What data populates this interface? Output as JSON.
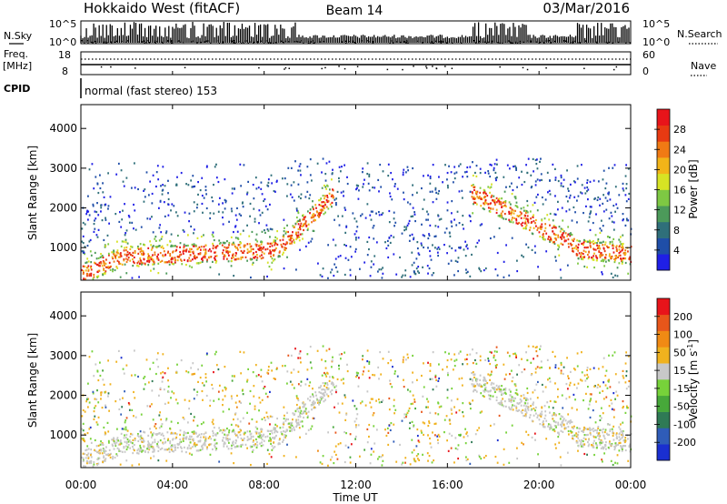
{
  "header": {
    "station": "Hokkaido West (fitACF)",
    "beam": "Beam 14",
    "date": "03/Mar/2016"
  },
  "noise_panel": {
    "left_label": "N.Sky",
    "right_label": "N.Search",
    "tick_top": "10^5",
    "tick_bottom": "10^0"
  },
  "freq_panel": {
    "left_label": "Freq.",
    "left_unit": "[MHz]",
    "left_ticks": [
      "18",
      "8"
    ],
    "right_label": "Nave",
    "right_ticks": [
      "60",
      "0"
    ]
  },
  "cpid_panel": {
    "label": "CPID",
    "mode": "normal (fast stereo) 153"
  },
  "chart_data": [
    {
      "type": "heatmap",
      "title": "Power",
      "xlabel": "Time UT",
      "ylabel": "Slant Range [km]",
      "x_ticks": [
        "00:00",
        "04:00",
        "08:00",
        "12:00",
        "16:00",
        "20:00",
        "00:00"
      ],
      "xlim_hours": [
        0,
        24
      ],
      "y_ticks": [
        1000,
        2000,
        3000,
        4000
      ],
      "ylim": [
        180,
        4600
      ],
      "colorbar": {
        "label": "Power [dB]",
        "ticks": [
          "28",
          "24",
          "20",
          "16",
          "12",
          "8",
          "4"
        ],
        "colors": [
          "#1f1fe6",
          "#1f4ea8",
          "#2f6f7a",
          "#4c9a5a",
          "#7ec843",
          "#d7e324",
          "#f2b418",
          "#f07a14",
          "#e83a12",
          "#e8141a"
        ]
      },
      "scatter_bands": [
        {
          "t_start": 0.0,
          "t_end": 2.0,
          "range_low": 300,
          "range_high": 1300
        },
        {
          "t_start": 2.0,
          "t_end": 8.5,
          "range_low": 700,
          "range_high": 1100
        },
        {
          "t_start": 8.5,
          "t_end": 11.0,
          "range_low": 1000,
          "range_high": 2600
        },
        {
          "t_start": 17.0,
          "t_end": 21.5,
          "range_low": 1200,
          "range_high": 2600
        },
        {
          "t_start": 21.5,
          "t_end": 24.0,
          "range_low": 700,
          "range_high": 1200
        }
      ]
    },
    {
      "type": "heatmap",
      "title": "Velocity",
      "xlabel": "Time UT",
      "ylabel": "Slant Range [km]",
      "x_ticks": [
        "00:00",
        "04:00",
        "08:00",
        "12:00",
        "16:00",
        "20:00",
        "00:00"
      ],
      "xlim_hours": [
        0,
        24
      ],
      "y_ticks": [
        1000,
        2000,
        3000,
        4000
      ],
      "ylim": [
        180,
        4600
      ],
      "colorbar": {
        "label": "Velocity [m s-1]",
        "label_main": "Velocity [m s",
        "label_exp": "-1",
        "label_close": "]",
        "ticks": [
          "200",
          "100",
          "50",
          "15",
          "-15",
          "-50",
          "-100",
          "-200"
        ],
        "colors": [
          "#1a2fd0",
          "#2f5cb8",
          "#2f7a55",
          "#47a83a",
          "#77d23a",
          "#c8c8c8",
          "#f0b21e",
          "#f08a14",
          "#e8561a",
          "#e8141a"
        ]
      }
    }
  ],
  "time_axis": {
    "label": "Time UT"
  }
}
